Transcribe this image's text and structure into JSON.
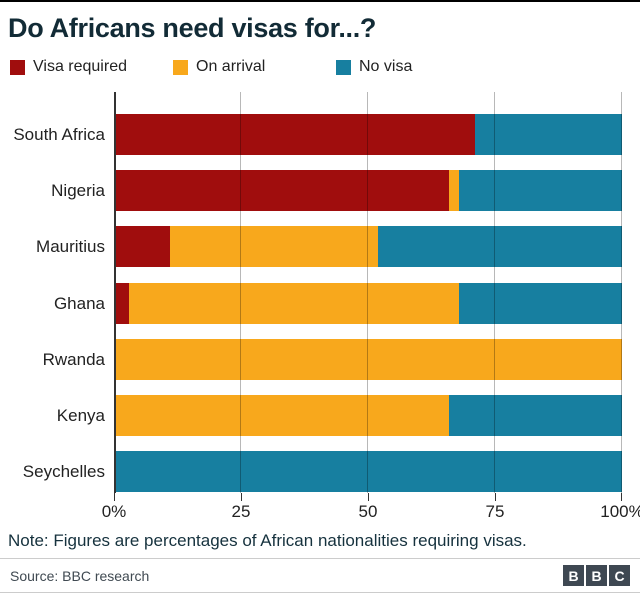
{
  "chart_data": {
    "type": "bar",
    "orientation": "horizontal",
    "stacked": true,
    "title": "Do Africans need visas for...?",
    "categories": [
      "South Africa",
      "Nigeria",
      "Mauritius",
      "Ghana",
      "Rwanda",
      "Kenya",
      "Seychelles"
    ],
    "series": [
      {
        "name": "Visa required",
        "color": "#a00d0d",
        "values": [
          71,
          66,
          11,
          3,
          0,
          0,
          0
        ]
      },
      {
        "name": "On arrival",
        "color": "#f8a81c",
        "values": [
          0,
          2,
          41,
          65,
          100,
          66,
          0
        ]
      },
      {
        "name": "No visa",
        "color": "#177fa0",
        "values": [
          29,
          32,
          48,
          32,
          0,
          34,
          100
        ]
      }
    ],
    "xlim": [
      0,
      100
    ],
    "x_ticks": [
      0,
      25,
      50,
      75,
      100
    ],
    "x_tick_labels": [
      "0%",
      "25",
      "50",
      "75",
      "100%"
    ],
    "grid": "vertical",
    "legend_position": "top",
    "units": "percent"
  },
  "footer": {
    "note": "Note: Figures are percentages of African nationalities requiring visas.",
    "source": "Source: BBC research",
    "logo_letters": [
      "B",
      "B",
      "C"
    ]
  }
}
